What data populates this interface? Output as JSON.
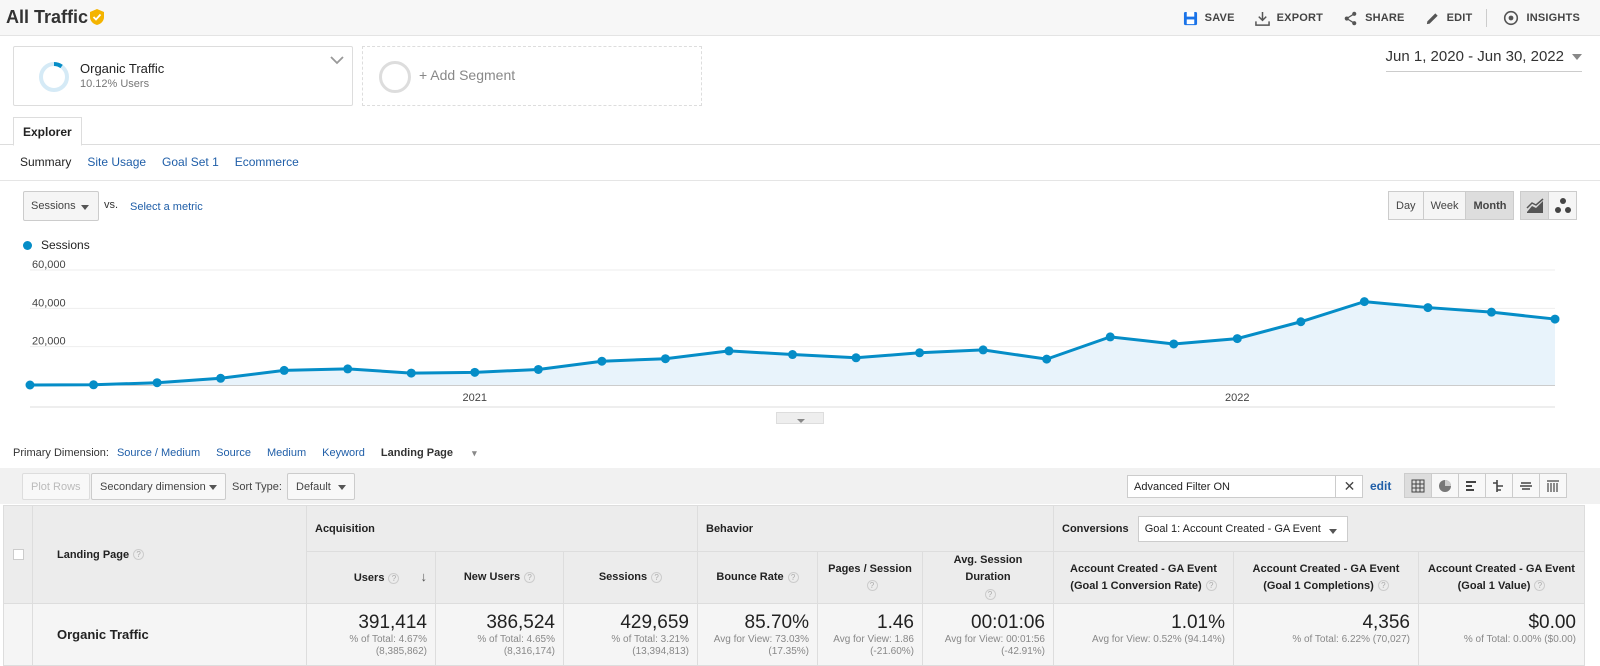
{
  "header": {
    "title": "All Traffic",
    "actions": [
      "SAVE",
      "EXPORT",
      "SHARE",
      "EDIT",
      "INSIGHTS"
    ]
  },
  "segments": {
    "active": {
      "name": "Organic Traffic",
      "subtitle": "10.12% Users"
    },
    "add_label": "+ Add Segment"
  },
  "date_range": "Jun 1, 2020 - Jun 30, 2022",
  "tabs": {
    "explorer": "Explorer"
  },
  "subtabs": [
    "Summary",
    "Site Usage",
    "Goal Set 1",
    "Ecommerce"
  ],
  "metric_controls": {
    "metric": "Sessions",
    "vs": "VS.",
    "select_metric": "Select a metric",
    "periods": [
      "Day",
      "Week",
      "Month"
    ],
    "active_period": "Month"
  },
  "chart_data": {
    "type": "area",
    "series": [
      {
        "name": "Sessions",
        "x": [
          "2020-06",
          "2020-07",
          "2020-08",
          "2020-09",
          "2020-10",
          "2020-11",
          "2020-12",
          "2021-01",
          "2021-02",
          "2021-03",
          "2021-04",
          "2021-05",
          "2021-06",
          "2021-07",
          "2021-08",
          "2021-09",
          "2021-10",
          "2021-11",
          "2021-12",
          "2022-01",
          "2022-02",
          "2022-03",
          "2022-04",
          "2022-05",
          "2022-06"
        ],
        "values": [
          0,
          100,
          1200,
          3500,
          7600,
          8400,
          6200,
          6600,
          8100,
          12400,
          13700,
          17800,
          15900,
          14200,
          16800,
          18300,
          13500,
          25100,
          21400,
          24200,
          33000,
          43500,
          40400,
          38000,
          34400
        ]
      }
    ],
    "y_ticks": [
      "60,000",
      "40,000",
      "20,000"
    ],
    "x_ticks": [
      "2021",
      "2022"
    ],
    "ylim": [
      0,
      60000
    ],
    "color": "#058dc7",
    "fill": "#e8f3fb"
  },
  "primary_dimension": {
    "label": "Primary Dimension:",
    "options": [
      "Source / Medium",
      "Source",
      "Medium",
      "Keyword"
    ],
    "active": "Landing Page"
  },
  "toolbar": {
    "plot_rows": "Plot Rows",
    "secondary_dimension": "Secondary dimension",
    "sort_type_label": "Sort Type:",
    "sort_type_value": "Default",
    "filter_text": "Advanced Filter ON",
    "edit": "edit"
  },
  "table": {
    "dimension_header": "Landing Page",
    "groups": {
      "acquisition": "Acquisition",
      "behavior": "Behavior",
      "conversions": "Conversions",
      "goal_select": "Goal 1: Account Created - GA Event"
    },
    "columns": {
      "users": "Users",
      "new_users": "New Users",
      "sessions": "Sessions",
      "bounce_rate": "Bounce Rate",
      "pages_session": "Pages / Session",
      "avg_duration": "Avg. Session Duration",
      "conv_rate": "Account Created - GA Event (Goal 1 Conversion Rate)",
      "completions": "Account Created - GA Event (Goal 1 Completions)",
      "value": "Account Created - GA Event (Goal 1 Value)"
    },
    "summary": {
      "label": "Organic Traffic",
      "users": {
        "value": "391,414",
        "sub1": "% of Total: 4.67%",
        "sub2": "(8,385,862)"
      },
      "new_users": {
        "value": "386,524",
        "sub1": "% of Total: 4.65%",
        "sub2": "(8,316,174)"
      },
      "sessions": {
        "value": "429,659",
        "sub1": "% of Total: 3.21%",
        "sub2": "(13,394,813)"
      },
      "bounce_rate": {
        "value": "85.70%",
        "sub1": "Avg for View: 73.03%",
        "sub2": "(17.35%)"
      },
      "pages_session": {
        "value": "1.46",
        "sub1": "Avg for View: 1.86",
        "sub2": "(-21.60%)"
      },
      "avg_duration": {
        "value": "00:01:06",
        "sub1": "Avg for View: 00:01:56",
        "sub2": "(-42.91%)"
      },
      "conv_rate": {
        "value": "1.01%",
        "sub1": "Avg for View: 0.52% (94.14%)"
      },
      "completions": {
        "value": "4,356",
        "sub1": "% of Total: 6.22% (70,027)"
      },
      "goal_value": {
        "value": "$0.00",
        "sub1": "% of Total: 0.00% ($0.00)"
      }
    }
  }
}
